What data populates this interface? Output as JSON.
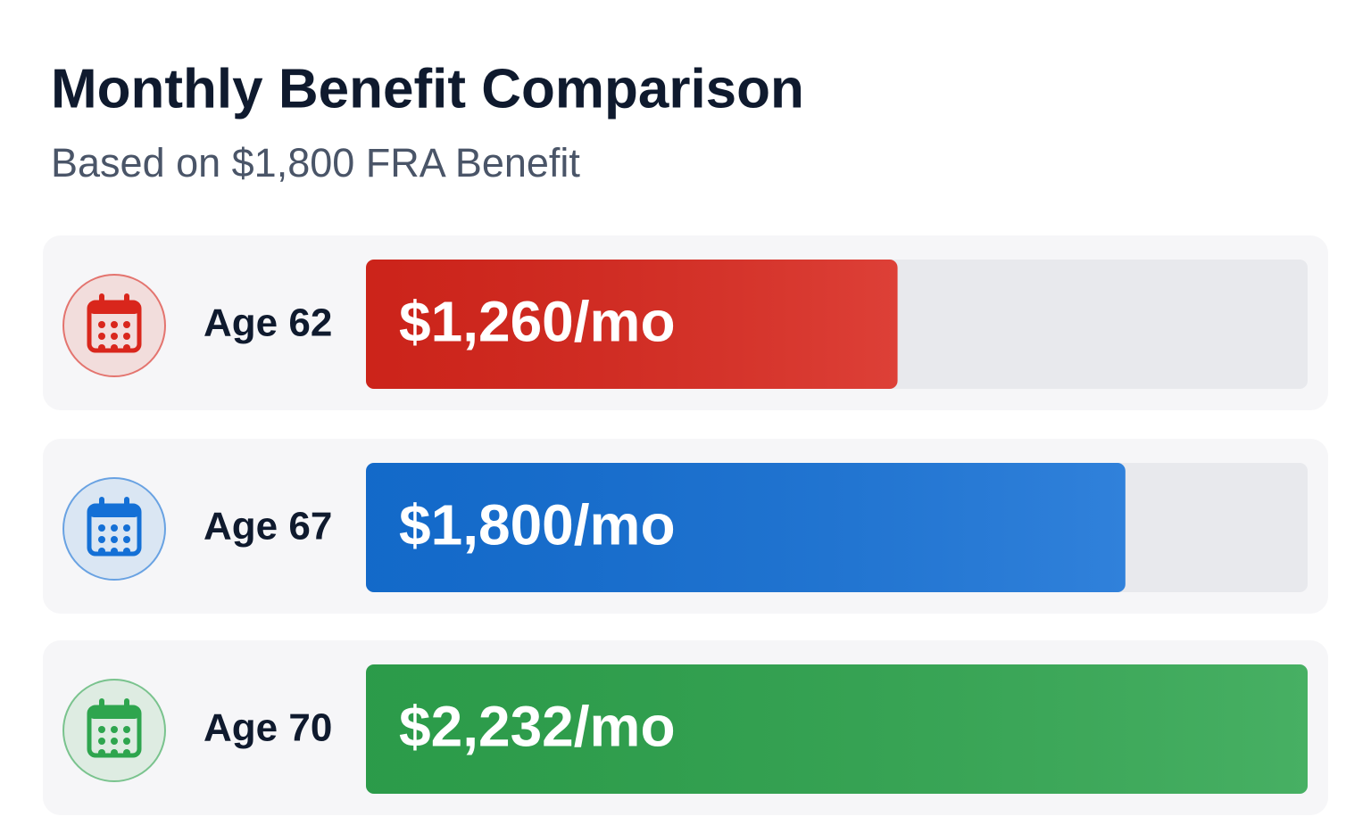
{
  "chart_data": {
    "type": "bar",
    "orientation": "horizontal",
    "title": "Monthly Benefit Comparison",
    "subtitle": "Based on $1,800 FRA Benefit",
    "categories": [
      "Age 62",
      "Age 67",
      "Age 70"
    ],
    "values": [
      1260,
      1800,
      2232
    ],
    "value_labels": [
      "$1,260/mo",
      "$1,800/mo",
      "$2,232/mo"
    ],
    "colors": [
      "#d9261c",
      "#1470d6",
      "#2ea54e"
    ]
  }
}
